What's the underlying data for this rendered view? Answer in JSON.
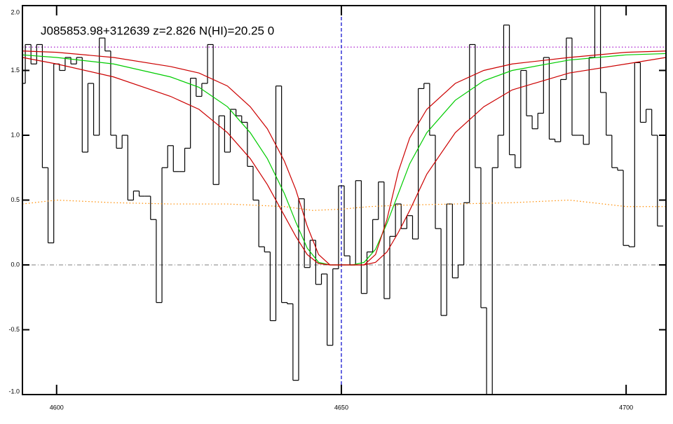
{
  "chart_data": {
    "type": "line",
    "title": "J085853.98+312639 z=2.826 N(HI)=20.25 0",
    "xlim": [
      4594,
      4707
    ],
    "ylim": [
      -1,
      2
    ],
    "xticks": [
      4600,
      4650,
      4700
    ],
    "yticks": [
      {
        "value": -1,
        "label": "-1.0"
      },
      {
        "value": -0.5,
        "label": "-0.5"
      },
      {
        "value": 0,
        "label": "0.0"
      },
      0.5,
      {
        "value": 1,
        "label": "1.0"
      },
      1.5,
      {
        "value": 2,
        "label": "2.0"
      }
    ],
    "series": [
      {
        "color": "#000000",
        "drawstyle": "steps-mid",
        "x": [
          4594,
          4595,
          4596,
          4597,
          4598,
          4599,
          4600,
          4601,
          4602,
          4603,
          4604,
          4605,
          4606,
          4607,
          4608,
          4609,
          4610,
          4611,
          4612,
          4613,
          4614,
          4615,
          4616,
          4617,
          4618,
          4619,
          4620,
          4621,
          4622,
          4623,
          4624,
          4625,
          4626,
          4627,
          4628,
          4629,
          4630,
          4631,
          4632,
          4633,
          4634,
          4635,
          4636,
          4637,
          4638,
          4639,
          4640,
          4641,
          4642,
          4643,
          4644,
          4645,
          4646,
          4647,
          4648,
          4649,
          4650,
          4651,
          4652,
          4653,
          4654,
          4655,
          4656,
          4657,
          4658,
          4659,
          4660,
          4661,
          4662,
          4663,
          4664,
          4665,
          4666,
          4667,
          4668,
          4669,
          4670,
          4671,
          4672,
          4673,
          4674,
          4675,
          4676,
          4677,
          4678,
          4679,
          4680,
          4681,
          4682,
          4683,
          4684,
          4685,
          4686,
          4687,
          4688,
          4689,
          4690,
          4691,
          4692,
          4693,
          4694,
          4695,
          4696,
          4697,
          4698,
          4699,
          4700,
          4701,
          4702,
          4703,
          4704,
          4705,
          4706
        ],
        "values": [
          1.4,
          1.7,
          1.55,
          1.7,
          0.75,
          0.17,
          1.55,
          1.5,
          1.6,
          1.55,
          1.6,
          0.87,
          1.4,
          1.0,
          1.75,
          1.65,
          1.0,
          0.9,
          1.0,
          0.5,
          0.57,
          0.53,
          0.53,
          0.35,
          -0.29,
          0.75,
          0.92,
          0.72,
          0.72,
          0.9,
          1.44,
          1.3,
          1.4,
          1.7,
          0.62,
          1.15,
          0.87,
          1.2,
          1.15,
          1.1,
          0.76,
          0.5,
          0.14,
          0.1,
          -0.43,
          1.38,
          -0.29,
          -0.3,
          -0.89,
          0.51,
          -0.02,
          0.19,
          -0.15,
          -0.07,
          -0.62,
          -0.03,
          0.61,
          0.07,
          0.0,
          0.65,
          -0.22,
          0.1,
          0.35,
          0.64,
          -0.26,
          0.22,
          0.47,
          0.28,
          0.38,
          0.2,
          1.36,
          1.4,
          1.0,
          0.28,
          -0.39,
          0.47,
          -0.1,
          0.0,
          0.48,
          1.7,
          0.75,
          -0.33,
          -1.0,
          0.75,
          1.0,
          1.85,
          0.85,
          0.75,
          1.5,
          1.15,
          1.05,
          1.17,
          1.6,
          0.97,
          0.95,
          1.43,
          1.75,
          1.0,
          1.0,
          0.93,
          1.6,
          2.0,
          1.33,
          1.0,
          0.75,
          0.73,
          0.15,
          0.14,
          1.56,
          1.1,
          1.2,
          1.0,
          0.3
        ]
      },
      {
        "color": "#00cc00",
        "linestyle": "solid",
        "x": [
          4594,
          4600,
          4610,
          4620,
          4625,
          4630,
          4634,
          4637,
          4640,
          4642,
          4644,
          4646,
          4648,
          4650,
          4652,
          4654,
          4656,
          4658,
          4660,
          4662,
          4665,
          4670,
          4675,
          4680,
          4690,
          4700,
          4707
        ],
        "values": [
          1.62,
          1.6,
          1.55,
          1.45,
          1.37,
          1.22,
          1.02,
          0.82,
          0.55,
          0.33,
          0.13,
          0.02,
          0,
          0,
          0,
          0.02,
          0.12,
          0.32,
          0.55,
          0.78,
          1.02,
          1.27,
          1.42,
          1.5,
          1.58,
          1.62,
          1.63
        ]
      },
      {
        "color": "#cc0000",
        "linestyle": "solid",
        "x": [
          4594,
          4600,
          4610,
          4620,
          4625,
          4630,
          4634,
          4637,
          4640,
          4642,
          4644,
          4646,
          4648,
          4650,
          4652,
          4654,
          4656,
          4658,
          4660,
          4662,
          4665,
          4670,
          4675,
          4680,
          4690,
          4700,
          4707
        ],
        "values": [
          1.65,
          1.64,
          1.6,
          1.53,
          1.48,
          1.38,
          1.22,
          1.05,
          0.8,
          0.58,
          0.3,
          0.08,
          0,
          0,
          0,
          0,
          0.08,
          0.35,
          0.72,
          0.98,
          1.2,
          1.4,
          1.5,
          1.55,
          1.6,
          1.64,
          1.65
        ]
      },
      {
        "color": "#cc0000",
        "linestyle": "solid",
        "x": [
          4594,
          4600,
          4610,
          4620,
          4625,
          4630,
          4634,
          4637,
          4640,
          4642,
          4644,
          4646,
          4648,
          4650,
          4652,
          4654,
          4656,
          4658,
          4660,
          4662,
          4665,
          4670,
          4675,
          4680,
          4690,
          4700,
          4707
        ],
        "values": [
          1.6,
          1.55,
          1.45,
          1.3,
          1.2,
          1.02,
          0.82,
          0.62,
          0.38,
          0.22,
          0.08,
          0.01,
          0,
          0,
          0,
          0,
          0.02,
          0.1,
          0.25,
          0.42,
          0.7,
          1.02,
          1.22,
          1.35,
          1.48,
          1.55,
          1.6
        ]
      },
      {
        "color": "#ff8c00",
        "linestyle": "dotted",
        "x": [
          4594,
          4600,
          4610,
          4620,
          4630,
          4640,
          4645,
          4650,
          4655,
          4660,
          4670,
          4680,
          4690,
          4700,
          4707
        ],
        "values": [
          0.47,
          0.5,
          0.48,
          0.47,
          0.47,
          0.45,
          0.42,
          0.43,
          0.45,
          0.46,
          0.47,
          0.48,
          0.5,
          0.45,
          0.45
        ]
      }
    ],
    "hlines": [
      {
        "y": 1.68,
        "color": "#a000c8",
        "linestyle": "dotted"
      },
      {
        "y": 0,
        "color": "#999999",
        "linestyle": "dashdot"
      }
    ],
    "vlines": [
      {
        "x": 4650,
        "color": "#0000cc",
        "linestyle": "dashed"
      }
    ]
  }
}
